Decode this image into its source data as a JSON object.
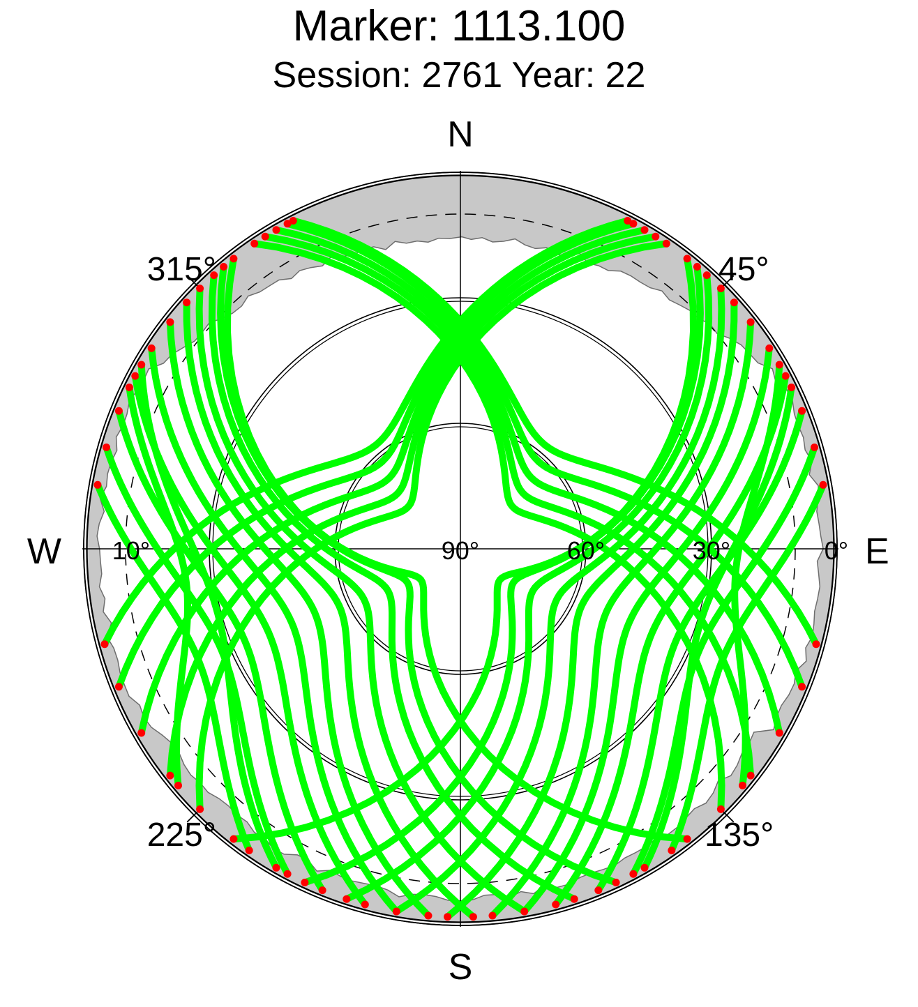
{
  "header": {
    "title": "Marker: 1113.100",
    "subtitle": "Session: 2761 Year: 22"
  },
  "chart_data": {
    "type": "scatter",
    "projection": "polar-skyplot",
    "directions": {
      "north": "N",
      "south": "S",
      "east": "E",
      "west": "W"
    },
    "azimuth_labels": [
      {
        "az": 45,
        "text": "45°"
      },
      {
        "az": 135,
        "text": "135°"
      },
      {
        "az": 225,
        "text": "225°"
      },
      {
        "az": 315,
        "text": "315°"
      }
    ],
    "elevation_labels": [
      {
        "el": 0,
        "text": "0°"
      },
      {
        "el": 30,
        "text": "30°"
      },
      {
        "el": 60,
        "text": "60°"
      },
      {
        "el": 90,
        "text": "90°"
      },
      {
        "el": 10,
        "text": "10°"
      }
    ],
    "elevation_rings": [
      0,
      30,
      60
    ],
    "cutoff_elevation_dashed": 10,
    "colors": {
      "tracks": "#00ff00",
      "endpoints": "#ff0000",
      "obstruction": "#c8c8c8",
      "grid": "#000000"
    },
    "series": [
      {
        "name": "",
        "color": "#00ff00",
        "tracks": [
          {
            "az_start": 38,
            "az_end": 218,
            "el_max": 78
          },
          {
            "az_start": 34,
            "az_end": 225,
            "el_max": 74
          },
          {
            "az_start": 32,
            "az_end": 232,
            "el_max": 70
          },
          {
            "az_start": 30,
            "az_end": 240,
            "el_max": 66
          },
          {
            "az_start": 28,
            "az_end": 248,
            "el_max": 62
          },
          {
            "az_start": 27,
            "az_end": 255,
            "el_max": 58
          },
          {
            "az_start": 40,
            "az_end": 205,
            "el_max": 75
          },
          {
            "az_start": 42,
            "az_end": 198,
            "el_max": 70
          },
          {
            "az_start": 45,
            "az_end": 190,
            "el_max": 64
          },
          {
            "az_start": 48,
            "az_end": 182,
            "el_max": 58
          },
          {
            "az_start": 52,
            "az_end": 175,
            "el_max": 52
          },
          {
            "az_start": 57,
            "az_end": 170,
            "el_max": 46
          },
          {
            "az_start": 62,
            "az_end": 165,
            "el_max": 40
          },
          {
            "az_start": 68,
            "az_end": 158,
            "el_max": 34
          },
          {
            "az_start": 74,
            "az_end": 152,
            "el_max": 28
          },
          {
            "az_start": 80,
            "az_end": 145,
            "el_max": 22
          },
          {
            "az_start": 322,
            "az_end": 142,
            "el_max": 78
          },
          {
            "az_start": 326,
            "az_end": 135,
            "el_max": 74
          },
          {
            "az_start": 328,
            "az_end": 128,
            "el_max": 70
          },
          {
            "az_start": 330,
            "az_end": 120,
            "el_max": 66
          },
          {
            "az_start": 332,
            "az_end": 112,
            "el_max": 62
          },
          {
            "az_start": 333,
            "az_end": 105,
            "el_max": 58
          },
          {
            "az_start": 320,
            "az_end": 155,
            "el_max": 75
          },
          {
            "az_start": 318,
            "az_end": 162,
            "el_max": 70
          },
          {
            "az_start": 315,
            "az_end": 170,
            "el_max": 64
          },
          {
            "az_start": 312,
            "az_end": 178,
            "el_max": 58
          },
          {
            "az_start": 308,
            "az_end": 185,
            "el_max": 52
          },
          {
            "az_start": 303,
            "az_end": 190,
            "el_max": 46
          },
          {
            "az_start": 298,
            "az_end": 195,
            "el_max": 40
          },
          {
            "az_start": 292,
            "az_end": 202,
            "el_max": 34
          },
          {
            "az_start": 286,
            "az_end": 208,
            "el_max": 28
          },
          {
            "az_start": 280,
            "az_end": 215,
            "el_max": 22
          },
          {
            "az_start": 300,
            "az_end": 210,
            "el_max": 30
          },
          {
            "az_start": 296,
            "az_end": 230,
            "el_max": 24
          },
          {
            "az_start": 64,
            "az_end": 150,
            "el_max": 30
          },
          {
            "az_start": 60,
            "az_end": 130,
            "el_max": 24
          }
        ]
      }
    ]
  }
}
